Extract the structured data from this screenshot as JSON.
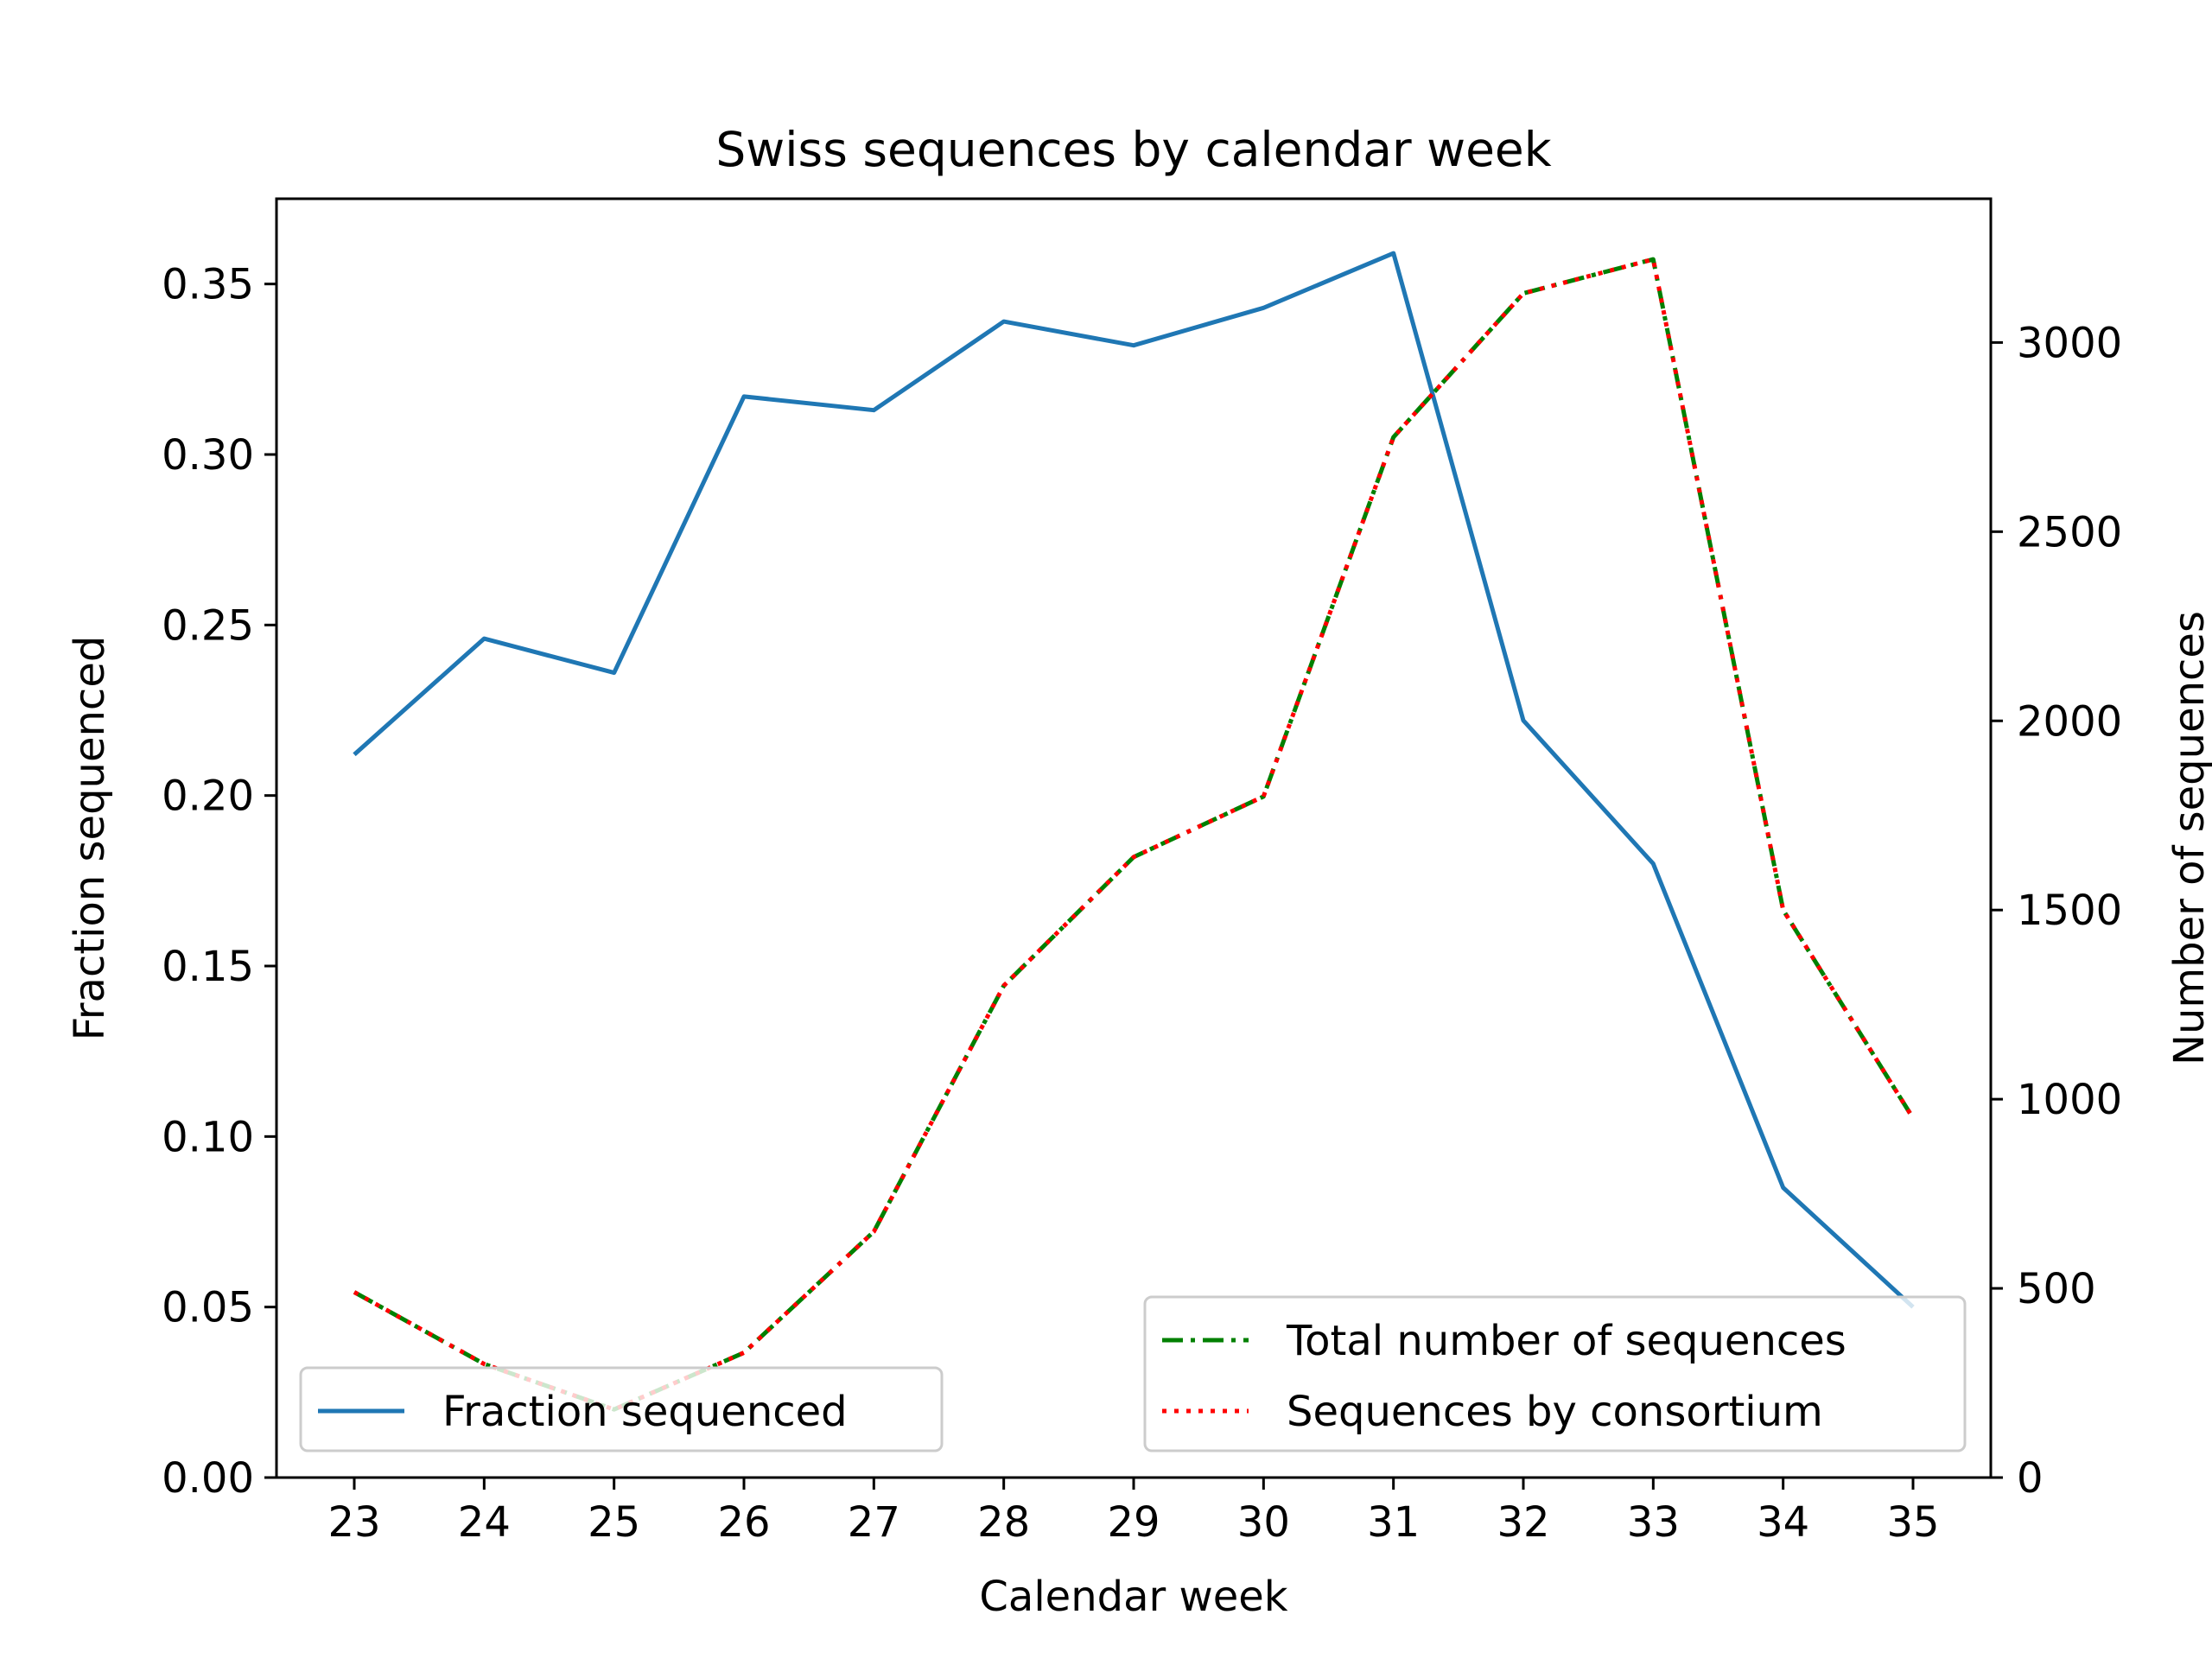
{
  "chart_data": {
    "type": "line",
    "title": "Swiss sequences by calendar week",
    "xlabel": "Calendar week",
    "ylabel_left": "Fraction sequenced",
    "ylabel_right": "Number of sequences",
    "x": [
      23,
      24,
      25,
      26,
      27,
      28,
      29,
      30,
      31,
      32,
      33,
      34,
      35
    ],
    "x_tick_labels": [
      "23",
      "24",
      "25",
      "26",
      "27",
      "28",
      "29",
      "30",
      "31",
      "32",
      "33",
      "34",
      "35"
    ],
    "ylim_left": [
      0,
      0.375
    ],
    "yticks_left": [
      "0.00",
      "0.05",
      "0.10",
      "0.15",
      "0.20",
      "0.25",
      "0.30",
      "0.35"
    ],
    "ylim_right": [
      0,
      3380
    ],
    "yticks_right": [
      "0",
      "500",
      "1000",
      "1500",
      "2000",
      "2500",
      "3000"
    ],
    "grid": false,
    "series": [
      {
        "name": "Fraction sequenced",
        "axis": "left",
        "color": "#1f77b4",
        "style": "solid",
        "values": [
          0.212,
          0.246,
          0.236,
          0.317,
          0.313,
          0.339,
          0.332,
          0.343,
          0.359,
          0.222,
          0.18,
          0.085,
          0.05
        ]
      },
      {
        "name": "Total number of sequences",
        "axis": "right",
        "color": "#008000",
        "style": "dashdot",
        "values": [
          490,
          300,
          180,
          330,
          650,
          1300,
          1640,
          1800,
          2750,
          3130,
          3220,
          1500,
          950
        ]
      },
      {
        "name": "Sequences by consortium",
        "axis": "right",
        "color": "#ff0000",
        "style": "dotted",
        "values": [
          490,
          300,
          180,
          330,
          650,
          1300,
          1640,
          1800,
          2750,
          3130,
          3220,
          1500,
          950
        ]
      }
    ],
    "legends": [
      {
        "placement": "lower-left",
        "entries": [
          "Fraction sequenced"
        ]
      },
      {
        "placement": "lower-right",
        "entries": [
          "Total number of sequences",
          "Sequences by consortium"
        ]
      }
    ]
  }
}
